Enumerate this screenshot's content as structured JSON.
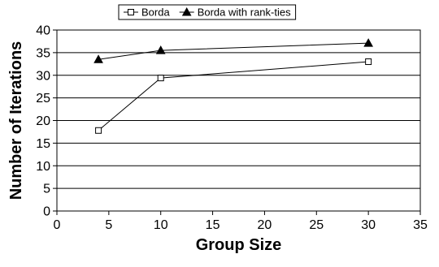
{
  "chart_data": {
    "type": "line",
    "xlabel": "Group Size",
    "ylabel": "Number of Iterations",
    "xlim": [
      0,
      35
    ],
    "ylim": [
      0,
      40
    ],
    "xticks": [
      0,
      5,
      10,
      15,
      20,
      25,
      30,
      35
    ],
    "yticks": [
      0,
      5,
      10,
      15,
      20,
      25,
      30,
      35,
      40
    ],
    "grid": "horizontal",
    "legend_position": "top-center",
    "series": [
      {
        "name": "Borda",
        "marker": "open-square",
        "color": "#000000",
        "x": [
          4,
          10,
          30
        ],
        "y": [
          17.8,
          29.4,
          33
        ]
      },
      {
        "name": "Borda with rank-ties",
        "marker": "filled-triangle",
        "color": "#000000",
        "x": [
          4,
          10,
          30
        ],
        "y": [
          33.5,
          35.5,
          37.1
        ]
      }
    ]
  }
}
